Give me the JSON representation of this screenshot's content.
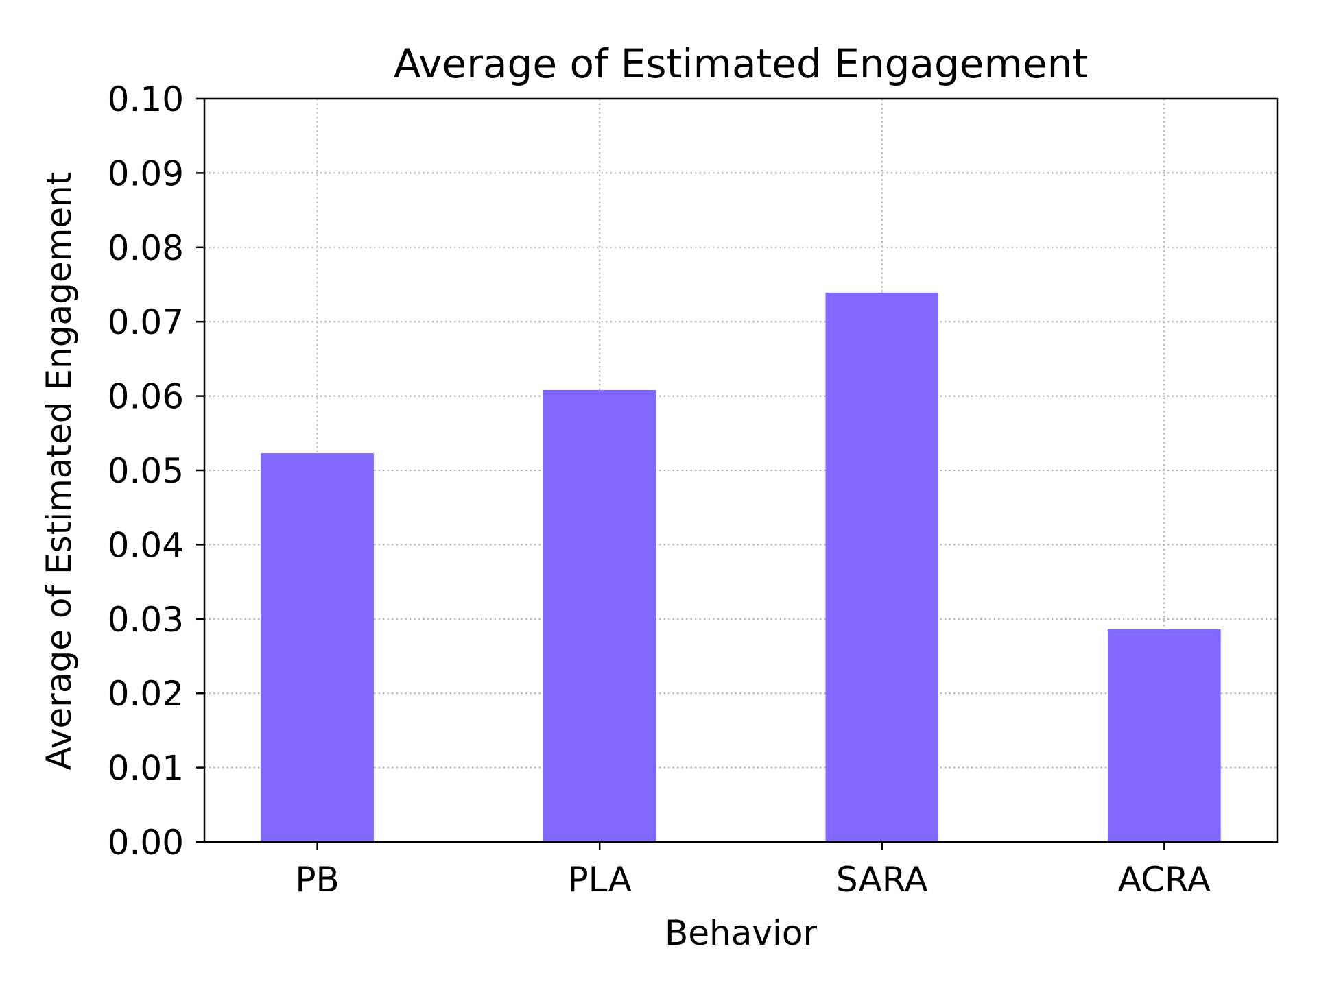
{
  "chart_data": {
    "type": "bar",
    "title": "Average of Estimated Engagement",
    "xlabel": "Behavior",
    "ylabel": "Average of Estimated Engagement",
    "categories": [
      "PB",
      "PLA",
      "SARA",
      "ACRA"
    ],
    "values": [
      0.0523,
      0.0608,
      0.0739,
      0.0286
    ],
    "ylim": [
      0,
      0.1
    ],
    "yticks": [
      "0.00",
      "0.01",
      "0.02",
      "0.03",
      "0.04",
      "0.05",
      "0.06",
      "0.07",
      "0.08",
      "0.09",
      "0.10"
    ],
    "grid": true,
    "bar_color": "#8268fc"
  }
}
